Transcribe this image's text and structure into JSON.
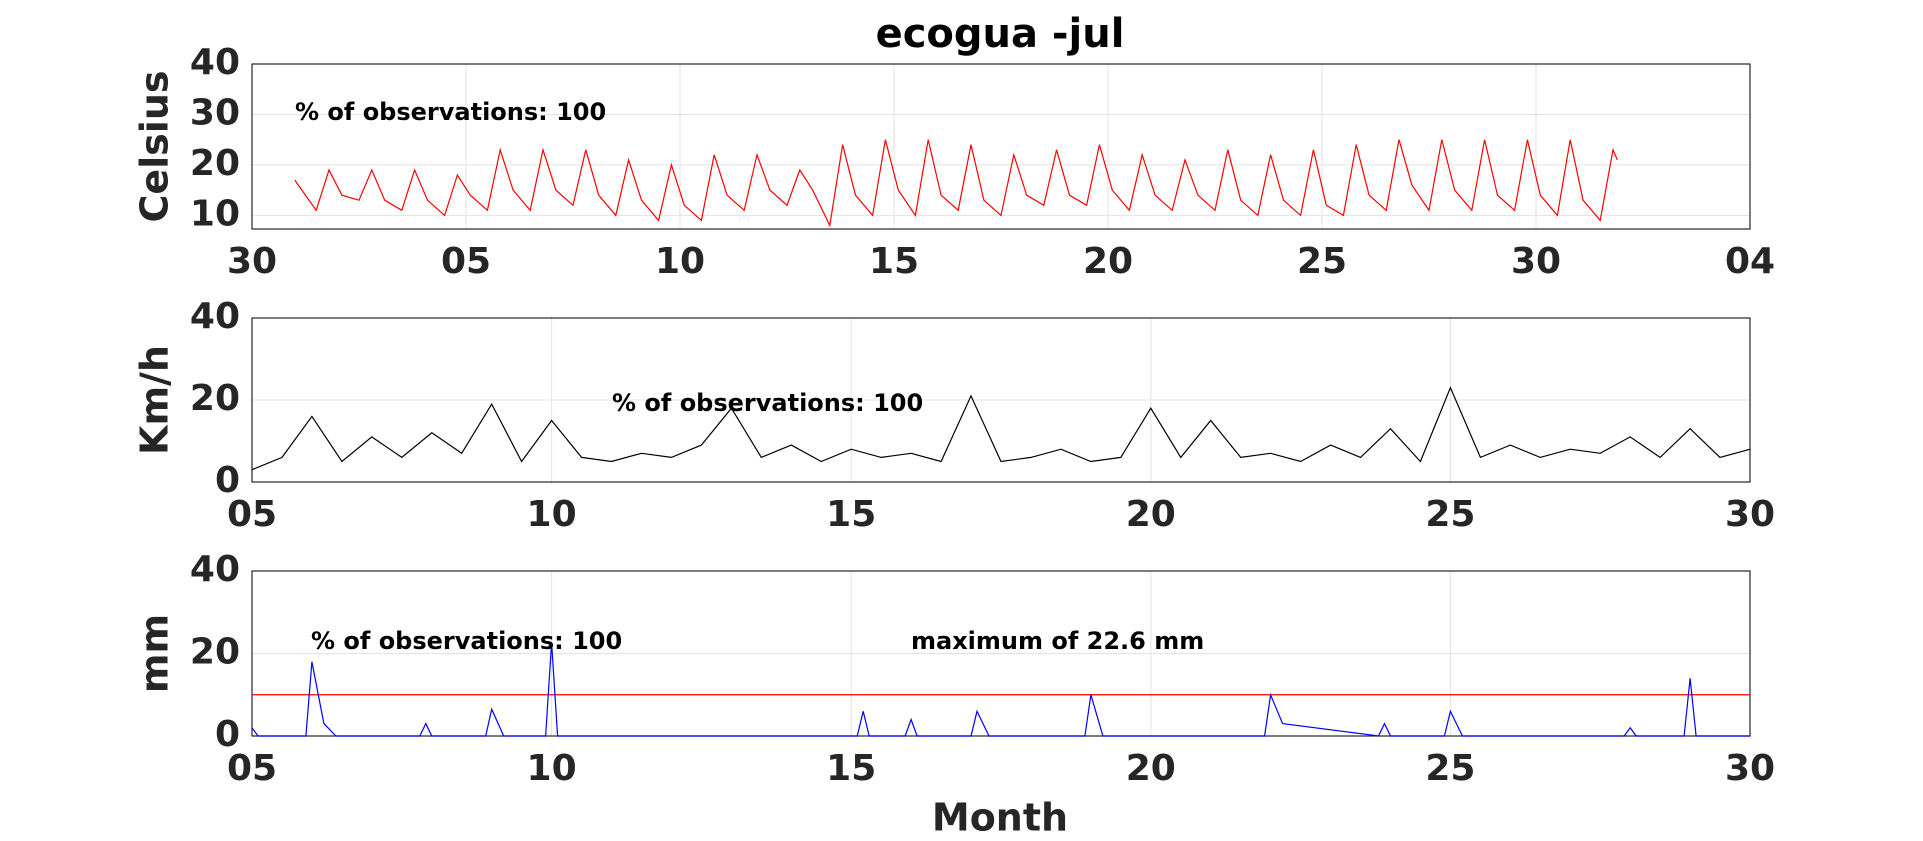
{
  "chart_data": [
    {
      "type": "line",
      "title": "ecogua -jul",
      "ylabel": "Celsius",
      "annotations": [
        "% of observations: 100"
      ],
      "color": "#ff0000",
      "grid": true,
      "xlim": [
        0,
        35
      ],
      "xticks": [
        {
          "value": 0,
          "label": "30"
        },
        {
          "value": 5,
          "label": "05"
        },
        10,
        15,
        20,
        25,
        30,
        {
          "value": 35,
          "label": "04"
        }
      ],
      "ylim": [
        7.3,
        40
      ],
      "yticks": [
        10,
        20,
        30,
        40
      ],
      "x": [
        1.0,
        1.5,
        1.8,
        2.1,
        2.5,
        2.8,
        3.1,
        3.5,
        3.8,
        4.1,
        4.5,
        4.8,
        5.1,
        5.5,
        5.8,
        6.1,
        6.5,
        6.8,
        7.1,
        7.5,
        7.8,
        8.1,
        8.5,
        8.8,
        9.1,
        9.5,
        9.8,
        10.1,
        10.5,
        10.8,
        11.1,
        11.5,
        11.8,
        12.1,
        12.5,
        12.8,
        13.1,
        13.5,
        13.8,
        14.1,
        14.5,
        14.8,
        15.1,
        15.5,
        15.8,
        16.1,
        16.5,
        16.8,
        17.1,
        17.5,
        17.8,
        18.1,
        18.5,
        18.8,
        19.1,
        19.5,
        19.8,
        20.1,
        20.5,
        20.8,
        21.1,
        21.5,
        21.8,
        22.1,
        22.5,
        22.8,
        23.1,
        23.5,
        23.8,
        24.1,
        24.5,
        24.8,
        25.1,
        25.5,
        25.8,
        26.1,
        26.5,
        26.8,
        27.1,
        27.5,
        27.8,
        28.1,
        28.5,
        28.8,
        29.1,
        29.5,
        29.8,
        30.1,
        30.5,
        30.8,
        31.1,
        31.5,
        31.8,
        31.9
      ],
      "values": [
        17,
        11,
        19,
        14,
        13,
        19,
        13,
        11,
        19,
        13,
        10,
        18,
        14,
        11,
        23,
        15,
        11,
        23,
        15,
        12,
        23,
        14,
        10,
        21,
        13,
        9,
        20,
        12,
        9,
        22,
        14,
        11,
        22,
        15,
        12,
        19,
        15,
        8,
        24,
        14,
        10,
        25,
        15,
        10,
        25,
        14,
        11,
        24,
        13,
        10,
        22,
        14,
        12,
        23,
        14,
        12,
        24,
        15,
        11,
        22,
        14,
        11,
        21,
        14,
        11,
        23,
        13,
        10,
        22,
        13,
        10,
        23,
        12,
        10,
        24,
        14,
        11,
        25,
        16,
        11,
        25,
        15,
        11,
        25,
        14,
        11,
        25,
        14,
        10,
        25,
        13,
        9,
        23,
        21
      ]
    },
    {
      "type": "line",
      "ylabel": "Km/h",
      "annotations": [
        "% of observations: 100"
      ],
      "color": "#000000",
      "grid": true,
      "xlim": [
        5,
        30
      ],
      "xticks": [
        {
          "value": 5,
          "label": "05"
        },
        10,
        15,
        20,
        25,
        30
      ],
      "ylim": [
        0,
        40
      ],
      "yticks": [
        0,
        20,
        40
      ],
      "x": [
        5,
        5.5,
        6,
        6.5,
        7,
        7.5,
        8,
        8.5,
        9,
        9.5,
        10,
        10.5,
        11,
        11.5,
        12,
        12.5,
        13,
        13.5,
        14,
        14.5,
        15,
        15.5,
        16,
        16.5,
        17,
        17.5,
        18,
        18.5,
        19,
        19.5,
        20,
        20.5,
        21,
        21.5,
        22,
        22.5,
        23,
        23.5,
        24,
        24.5,
        25,
        25.5,
        26,
        26.5,
        27,
        27.5,
        28,
        28.5,
        29,
        29.5,
        30
      ],
      "values": [
        3,
        6,
        16,
        5,
        11,
        6,
        12,
        7,
        19,
        5,
        15,
        6,
        5,
        7,
        6,
        9,
        18,
        6,
        9,
        5,
        8,
        6,
        7,
        5,
        21,
        5,
        6,
        8,
        5,
        6,
        18,
        6,
        15,
        6,
        7,
        5,
        9,
        6,
        13,
        5,
        23,
        6,
        9,
        6,
        8,
        7,
        11,
        6,
        13,
        6,
        8
      ]
    },
    {
      "type": "line",
      "ylabel": "mm",
      "xlabel": "Month",
      "annotations": [
        "% of observations: 100",
        "maximum of 22.6 mm"
      ],
      "color": "#0000ff",
      "grid": true,
      "reference_line": 10,
      "reference_color": "#ff0000",
      "xlim": [
        5,
        30
      ],
      "xticks": [
        {
          "value": 5,
          "label": "05"
        },
        10,
        15,
        20,
        25,
        30
      ],
      "ylim": [
        0,
        40
      ],
      "yticks": [
        0,
        20,
        40
      ],
      "x": [
        5,
        5.1,
        5.9,
        6.0,
        6.2,
        6.4,
        7.8,
        7.9,
        8.0,
        8.9,
        9.0,
        9.2,
        9.9,
        10.0,
        10.1,
        15.1,
        15.2,
        15.3,
        15.9,
        16.0,
        16.1,
        17.0,
        17.1,
        17.3,
        18.9,
        19.0,
        19.2,
        21.9,
        22.0,
        22.2,
        23.8,
        23.9,
        24.0,
        24.9,
        25.0,
        25.2,
        27.9,
        28.0,
        28.1,
        28.9,
        29.0,
        29.1,
        30
      ],
      "values": [
        2,
        0,
        0,
        18,
        3,
        0,
        0,
        3,
        0,
        0,
        6.5,
        0,
        0,
        22.6,
        0,
        0,
        6,
        0,
        0,
        4,
        0,
        0,
        6,
        0,
        0,
        10,
        0,
        0,
        10,
        3,
        0,
        3,
        0,
        0,
        6,
        0,
        0,
        2,
        0,
        0,
        14,
        0,
        0
      ]
    }
  ]
}
